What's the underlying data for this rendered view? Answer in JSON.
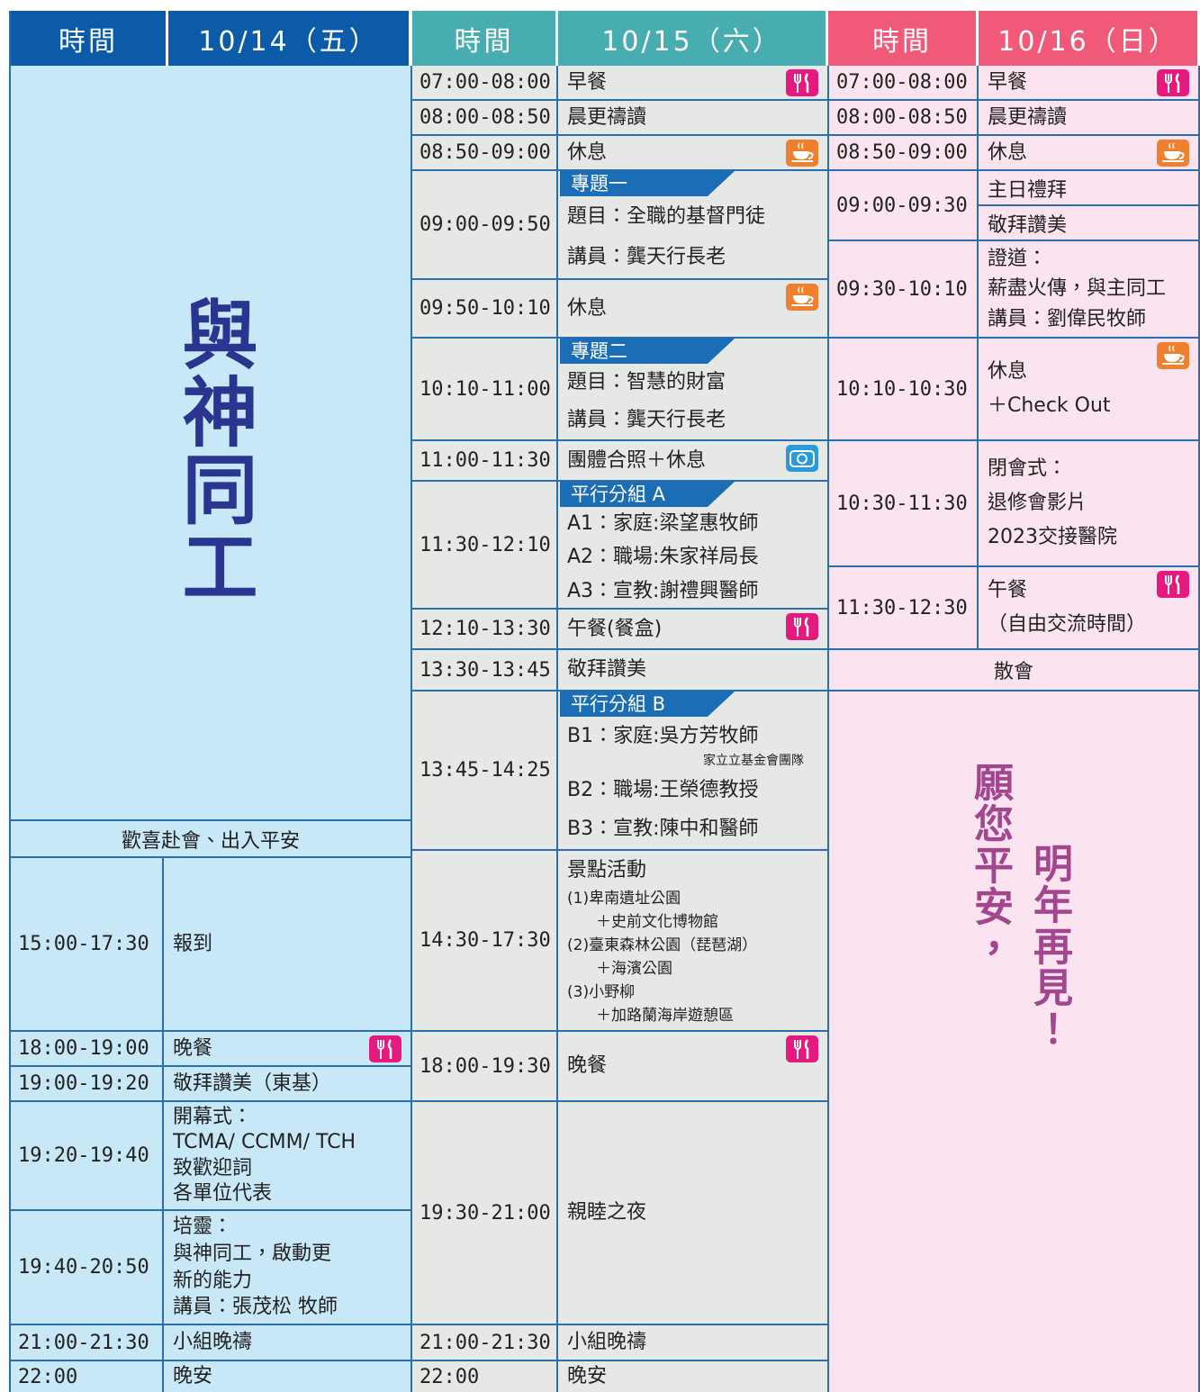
{
  "day1": {
    "time_header": "時間",
    "date": "10/14（五）",
    "theme": "與神同工",
    "motto": "歡喜赴會、出入平安",
    "rows": [
      {
        "time": "15:00-17:30",
        "lines": [
          "報到"
        ]
      },
      {
        "time": "18:00-19:00",
        "lines": [
          "晚餐"
        ]
      },
      {
        "time": "19:00-19:20",
        "lines": [
          "敬拜讚美（東基）"
        ]
      },
      {
        "time": "19:20-19:40",
        "lines": [
          "開幕式：",
          "TCMA/ CCMM/ TCH",
          "致歡迎詞",
          "各單位代表"
        ]
      },
      {
        "time": "19:40-20:50",
        "lines": [
          "培靈：",
          "與神同工，啟動更",
          "新的能力",
          "講員：張茂松 牧師"
        ]
      },
      {
        "time": "21:00-21:30",
        "lines": [
          "小組晚禱"
        ]
      },
      {
        "time": "22:00",
        "lines": [
          "晚安"
        ]
      }
    ]
  },
  "day2": {
    "time_header": "時間",
    "date": "10/15（六）",
    "rows": [
      {
        "time": "07:00-08:00",
        "lines": [
          "早餐"
        ]
      },
      {
        "time": "08:00-08:50",
        "lines": [
          "晨更禱讀"
        ]
      },
      {
        "time": "08:50-09:00",
        "lines": [
          "休息"
        ]
      },
      {
        "time": "09:00-09:50",
        "tag": "專題一",
        "lines": [
          "題目：全職的基督門徒",
          "講員：龔天行長老"
        ]
      },
      {
        "time": "09:50-10:10",
        "lines": [
          "休息"
        ]
      },
      {
        "time": "10:10-11:00",
        "tag": "專題二",
        "lines": [
          "題目：智慧的財富",
          "講員：龔天行長老"
        ]
      },
      {
        "time": "11:00-11:30",
        "lines": [
          "團體合照＋休息"
        ]
      },
      {
        "time": "11:30-12:10",
        "tag": "平行分組 A",
        "lines": [
          "A1：家庭:梁望惠牧師",
          "A2：職場:朱家祥局長",
          "A3：宣教:謝禮興醫師"
        ]
      },
      {
        "time": "12:10-13:30",
        "lines": [
          "午餐(餐盒)"
        ]
      },
      {
        "time": "13:30-13:45",
        "lines": [
          "敬拜讚美"
        ]
      },
      {
        "time": "13:45-14:25",
        "tag": "平行分組 B",
        "lines": [
          "B1：家庭:吳方芳牧師",
          "B2：職場:王榮德教授",
          "B3：宣教:陳中和醫師"
        ],
        "note": "家立立基金會團隊"
      },
      {
        "time": "14:30-17:30",
        "lines": [
          "景點活動"
        ],
        "items": [
          "(1)卑南遺址公園",
          "＋史前文化博物館",
          "(2)臺東森林公園（琵琶湖）",
          "＋海濱公園",
          "(3)小野柳",
          "＋加路蘭海岸遊憩區"
        ]
      },
      {
        "time": "18:00-19:30",
        "lines": [
          "晚餐"
        ]
      },
      {
        "time": "19:30-21:00",
        "lines": [
          "親睦之夜"
        ]
      },
      {
        "time": "21:00-21:30",
        "lines": [
          "小組晚禱"
        ]
      },
      {
        "time": "22:00",
        "lines": [
          "晚安"
        ]
      }
    ]
  },
  "day3": {
    "time_header": "時間",
    "date": "10/16（日）",
    "rows": [
      {
        "time": "07:00-08:00",
        "lines": [
          "早餐"
        ]
      },
      {
        "time": "08:00-08:50",
        "lines": [
          "晨更禱讀"
        ]
      },
      {
        "time": "08:50-09:00",
        "lines": [
          "休息"
        ]
      },
      {
        "time": "09:00-09:30",
        "parts": [
          "主日禮拜",
          "敬拜讚美"
        ]
      },
      {
        "time": "09:30-10:10",
        "lines": [
          "證道：",
          "薪盡火傳，與主同工",
          "講員：劉偉民牧師"
        ]
      },
      {
        "time": "10:10-10:30",
        "lines": [
          "休息",
          "＋Check Out"
        ]
      },
      {
        "time": "10:30-11:30",
        "lines": [
          "閉會式：",
          "退修會影片",
          "2023交接醫院"
        ]
      },
      {
        "time": "11:30-12:30",
        "lines": [
          "午餐",
          "（自由交流時間）"
        ]
      }
    ],
    "closing": "散會",
    "blessing": [
      "願您平安，",
      "明年再見！"
    ]
  }
}
